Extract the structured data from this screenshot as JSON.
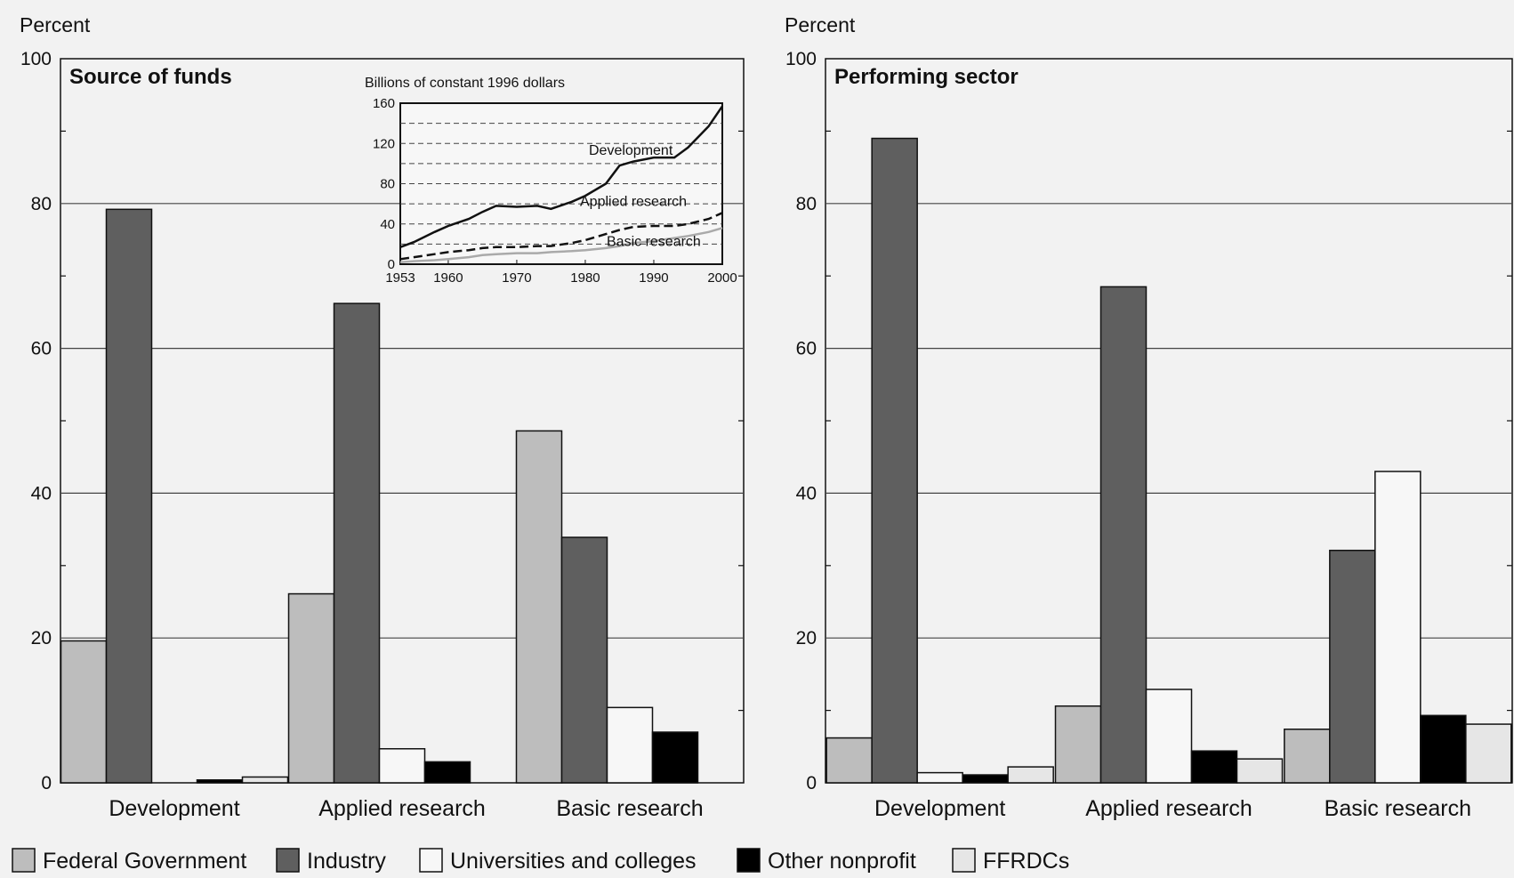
{
  "colors": {
    "Federal Government": "#bdbdbd",
    "Industry": "#5f5f5f",
    "Universities and colleges": "#f7f7f7",
    "Other nonprofit": "#000000",
    "FFRDCs": "#e6e6e6"
  },
  "legend": [
    "Federal Government",
    "Industry",
    "Universities and colleges",
    "Other nonprofit",
    "FFRDCs"
  ],
  "chart_data": [
    {
      "type": "bar",
      "title": "Source of funds",
      "ylabel": "Percent",
      "ylim": [
        0,
        100
      ],
      "yticks": [
        "0",
        "20",
        "40",
        "60",
        "80",
        "100"
      ],
      "categories": [
        "Development",
        "Applied research",
        "Basic research"
      ],
      "series": [
        {
          "name": "Federal Government",
          "values": [
            19.6,
            26.1,
            48.6
          ]
        },
        {
          "name": "Industry",
          "values": [
            79.2,
            66.2,
            33.9
          ]
        },
        {
          "name": "Universities and colleges",
          "values": [
            0,
            4.7,
            10.4
          ]
        },
        {
          "name": "Other nonprofit",
          "values": [
            0.4,
            2.9,
            7.0
          ]
        },
        {
          "name": "FFRDCs",
          "values": [
            0.8,
            0,
            0
          ]
        }
      ],
      "grid": true,
      "legend_position": "bottom"
    },
    {
      "type": "bar",
      "title": "Performing sector",
      "ylabel": "Percent",
      "ylim": [
        0,
        100
      ],
      "yticks": [
        "0",
        "20",
        "40",
        "60",
        "80",
        "100"
      ],
      "categories": [
        "Development",
        "Applied research",
        "Basic research"
      ],
      "series": [
        {
          "name": "Federal Government",
          "values": [
            6.2,
            10.6,
            7.4
          ]
        },
        {
          "name": "Industry",
          "values": [
            89.0,
            68.5,
            32.1
          ]
        },
        {
          "name": "Universities and colleges",
          "values": [
            1.4,
            12.9,
            43.0
          ]
        },
        {
          "name": "Other nonprofit",
          "values": [
            1.1,
            4.4,
            9.3
          ]
        },
        {
          "name": "FFRDCs",
          "values": [
            2.2,
            3.3,
            8.1
          ]
        }
      ],
      "grid": true,
      "legend_position": "bottom"
    },
    {
      "type": "line",
      "title": "",
      "ylabel": "Billions of constant 1996 dollars",
      "ylim": [
        0,
        160
      ],
      "yticks": [
        "0",
        "40",
        "80",
        "120",
        "160"
      ],
      "xlim": [
        1953,
        2000
      ],
      "xticks": [
        "1953",
        "1960",
        "1970",
        "1980",
        "1990",
        "2000"
      ],
      "series": [
        {
          "name": "Development",
          "x": [
            1953,
            1955,
            1958,
            1960,
            1963,
            1965,
            1967,
            1970,
            1973,
            1975,
            1978,
            1980,
            1983,
            1985,
            1987,
            1990,
            1993,
            1995,
            1998,
            2000
          ],
          "y": [
            17,
            22,
            32,
            38,
            45,
            52,
            58,
            57,
            58,
            55,
            62,
            68,
            80,
            98,
            102,
            106,
            106,
            116,
            137,
            157
          ]
        },
        {
          "name": "Applied research",
          "x": [
            1953,
            1955,
            1958,
            1960,
            1963,
            1965,
            1967,
            1970,
            1973,
            1975,
            1978,
            1980,
            1983,
            1985,
            1987,
            1990,
            1993,
            1995,
            1998,
            2000
          ],
          "y": [
            5,
            7,
            10,
            12,
            14,
            16,
            17,
            17,
            18,
            18,
            21,
            24,
            30,
            34,
            37,
            38,
            38,
            40,
            45,
            51
          ]
        },
        {
          "name": "Basic research",
          "x": [
            1953,
            1955,
            1958,
            1960,
            1963,
            1965,
            1967,
            1970,
            1973,
            1975,
            1978,
            1980,
            1983,
            1985,
            1987,
            1990,
            1993,
            1995,
            1998,
            2000
          ],
          "y": [
            2,
            3,
            4,
            5,
            7,
            9,
            10,
            11,
            11,
            12,
            13,
            14,
            16,
            18,
            21,
            23,
            26,
            28,
            32,
            36
          ]
        }
      ]
    }
  ]
}
